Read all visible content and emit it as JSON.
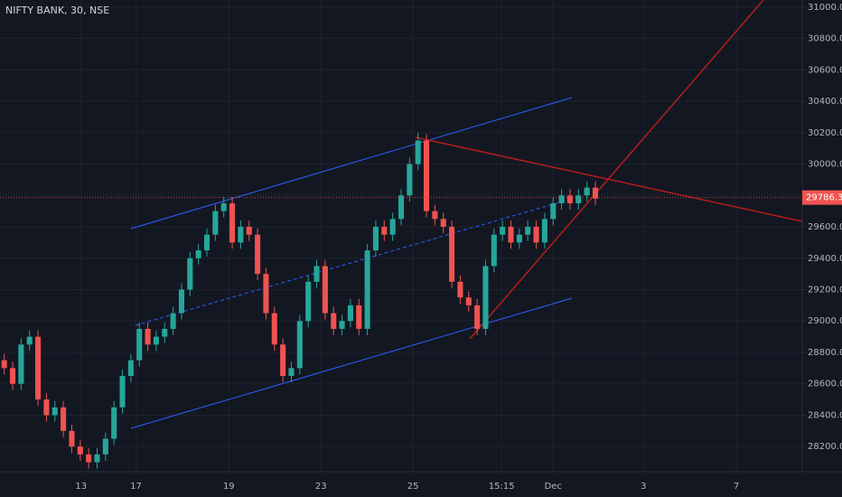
{
  "chart_data": {
    "type": "candlestick",
    "title": "NIFTY BANK, 30, NSE",
    "up_color": "#26a69a",
    "down_color": "#ef5350",
    "open": [
      28750,
      28700,
      28600,
      28850,
      28900,
      28500,
      28400,
      28450,
      28300,
      28200,
      28150,
      28100,
      28150,
      28250,
      28450,
      28650,
      28750,
      28950,
      28850,
      28900,
      28950,
      29050,
      29200,
      29400,
      29450,
      29550,
      29700,
      29750,
      29500,
      29600,
      29550,
      29300,
      29050,
      28850,
      28650,
      28700,
      29000,
      29250,
      29350,
      29050,
      28950,
      29000,
      29100,
      28950,
      29450,
      29600,
      29550,
      29650,
      29800,
      30000,
      30150,
      29700,
      29650,
      29600,
      29250,
      29150,
      29100,
      28950,
      29350,
      29550,
      29600,
      29500,
      29550,
      29600,
      29500,
      29650,
      29750,
      29800,
      29750,
      29800,
      29850
    ],
    "high": [
      28790,
      28740,
      28890,
      28940,
      28940,
      28540,
      28490,
      28490,
      28340,
      28240,
      28190,
      28190,
      28290,
      28490,
      28690,
      28790,
      28990,
      28990,
      28940,
      28990,
      29090,
      29240,
      29440,
      29490,
      29590,
      29740,
      29790,
      29790,
      29640,
      29640,
      29590,
      29340,
      29090,
      28890,
      28740,
      29040,
      29290,
      29390,
      29390,
      29090,
      29040,
      29140,
      29140,
      29490,
      29640,
      29640,
      29690,
      29840,
      30040,
      30200,
      30190,
      29740,
      29690,
      29640,
      29290,
      29190,
      29140,
      29390,
      29590,
      29640,
      29640,
      29590,
      29640,
      29640,
      29690,
      29790,
      29840,
      29840,
      29840,
      29890,
      29890
    ],
    "low": [
      28660,
      28560,
      28560,
      28810,
      28460,
      28360,
      28360,
      28260,
      28160,
      28110,
      28060,
      28060,
      28110,
      28210,
      28410,
      28610,
      28710,
      28810,
      28810,
      28860,
      28910,
      29010,
      29160,
      29360,
      29410,
      29510,
      29660,
      29460,
      29460,
      29510,
      29260,
      29010,
      28810,
      28610,
      28610,
      28660,
      28960,
      29210,
      29010,
      28910,
      28910,
      28960,
      28910,
      28910,
      29410,
      29510,
      29510,
      29610,
      29760,
      29960,
      29660,
      29610,
      29560,
      29210,
      29110,
      29060,
      28910,
      28910,
      29310,
      29510,
      29460,
      29460,
      29510,
      29460,
      29460,
      29610,
      29710,
      29710,
      29710,
      29760,
      29740
    ],
    "close": [
      28700,
      28600,
      28850,
      28900,
      28500,
      28400,
      28450,
      28300,
      28200,
      28150,
      28100,
      28150,
      28250,
      28450,
      28650,
      28750,
      28950,
      28850,
      28900,
      28950,
      29050,
      29200,
      29400,
      29450,
      29550,
      29700,
      29750,
      29500,
      29600,
      29550,
      29300,
      29050,
      28850,
      28650,
      28700,
      29000,
      29250,
      29350,
      29050,
      28950,
      29000,
      29100,
      28950,
      29450,
      29600,
      29550,
      29650,
      29800,
      30000,
      30150,
      29700,
      29650,
      29600,
      29250,
      29150,
      29100,
      28950,
      29350,
      29550,
      29600,
      29500,
      29550,
      29600,
      29500,
      29650,
      29750,
      29800,
      29750,
      29800,
      29850,
      29780
    ],
    "last_price": 29786.35,
    "xlim": [
      -0.5,
      94.5
    ],
    "xticks": [
      {
        "value": 9.1,
        "label": "13"
      },
      {
        "value": 15.6,
        "label": "17"
      },
      {
        "value": 26.6,
        "label": "19"
      },
      {
        "value": 37.5,
        "label": "23"
      },
      {
        "value": 48.4,
        "label": "25"
      },
      {
        "value": 58.9,
        "label": "15:15"
      },
      {
        "value": 65,
        "label": "Dec"
      },
      {
        "value": 75.7,
        "label": "3"
      },
      {
        "value": 86.7,
        "label": "7"
      }
    ],
    "ylim": [
      28040,
      31045
    ],
    "yticks": [
      {
        "value": 28200,
        "label": "28200.00"
      },
      {
        "value": 28400,
        "label": "28400.00"
      },
      {
        "value": 28600,
        "label": "28600.00"
      },
      {
        "value": 28800,
        "label": "28800.00"
      },
      {
        "value": 29000,
        "label": "29000.00"
      },
      {
        "value": 29200,
        "label": "29200.00"
      },
      {
        "value": 29400,
        "label": "29400.00"
      },
      {
        "value": 29600,
        "label": "29600.00"
      },
      {
        "value": 29800,
        "label": "29800.00"
      },
      {
        "value": 30000,
        "label": "30000.00"
      },
      {
        "value": 30200,
        "label": "30200.00"
      },
      {
        "value": 30400,
        "label": "30400.00"
      },
      {
        "value": 30600,
        "label": "30600.00"
      },
      {
        "value": 30800,
        "label": "30800.00"
      },
      {
        "value": 31000,
        "label": "31000.00"
      }
    ]
  }
}
